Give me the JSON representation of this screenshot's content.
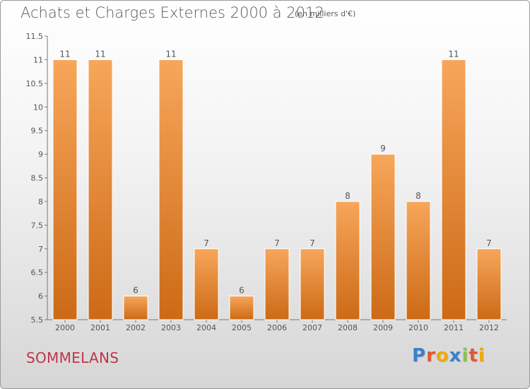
{
  "header": {
    "title": "Achats et Charges Externes 2000 à 2012",
    "unit": "(en milliers d'€)"
  },
  "footer": {
    "town": "SOMMELANS",
    "logo": "Proxiti",
    "logo_letters": [
      {
        "ch": "P",
        "color": "#3a7fd0"
      },
      {
        "ch": "r",
        "color": "#e4572e"
      },
      {
        "ch": "o",
        "color": "#f2a900"
      },
      {
        "ch": "x",
        "color": "#3a7fd0"
      },
      {
        "ch": "i",
        "color": "#8bc34a"
      },
      {
        "ch": "t",
        "color": "#e4572e"
      },
      {
        "ch": "i",
        "color": "#f2a900"
      }
    ]
  },
  "chart_data": {
    "type": "bar",
    "categories": [
      "2000",
      "2001",
      "2002",
      "2003",
      "2004",
      "2005",
      "2006",
      "2007",
      "2008",
      "2009",
      "2010",
      "2011",
      "2012"
    ],
    "values": [
      11,
      11,
      6,
      11,
      7,
      6,
      7,
      7,
      8,
      9,
      8,
      11,
      7
    ],
    "ylim": [
      5.5,
      11.5
    ],
    "yticks": [
      "5.5",
      "6",
      "6.5",
      "7",
      "7.5",
      "8",
      "8.5",
      "9",
      "9.5",
      "10",
      "10.5",
      "11",
      "11.5"
    ],
    "bar_color_top": "#f7a65a",
    "bar_color_bottom": "#cc6a16",
    "grid": false
  }
}
